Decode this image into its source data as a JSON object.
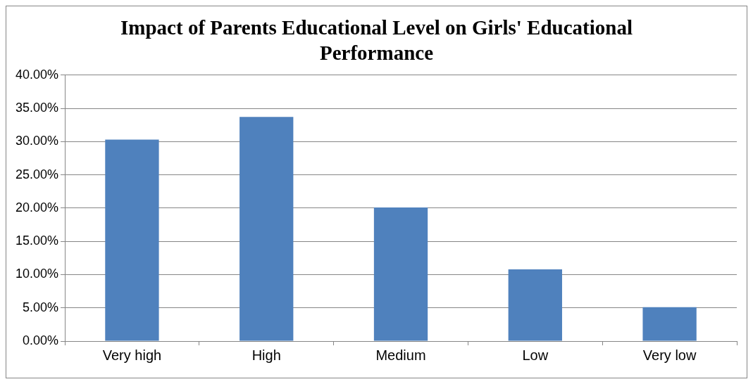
{
  "chart_data": {
    "type": "bar",
    "title": "Impact of Parents Educational Level on Girls' Educational Performance",
    "categories": [
      "Very high",
      "High",
      "Medium",
      "Low",
      "Very low"
    ],
    "values": [
      30.3,
      33.7,
      20.1,
      10.8,
      5.1
    ],
    "color": "#4f81bd",
    "ylim": [
      0,
      40
    ],
    "yticks": [
      {
        "value": 0,
        "label": "0.00%"
      },
      {
        "value": 5,
        "label": "5.00%"
      },
      {
        "value": 10,
        "label": "10.00%"
      },
      {
        "value": 15,
        "label": "15.00%"
      },
      {
        "value": 20,
        "label": "20.00%"
      },
      {
        "value": 25,
        "label": "25.00%"
      },
      {
        "value": 30,
        "label": "30.00%"
      },
      {
        "value": 35,
        "label": "35.00%"
      },
      {
        "value": 40,
        "label": "40.00%"
      }
    ],
    "grid": "y",
    "legend": false
  }
}
